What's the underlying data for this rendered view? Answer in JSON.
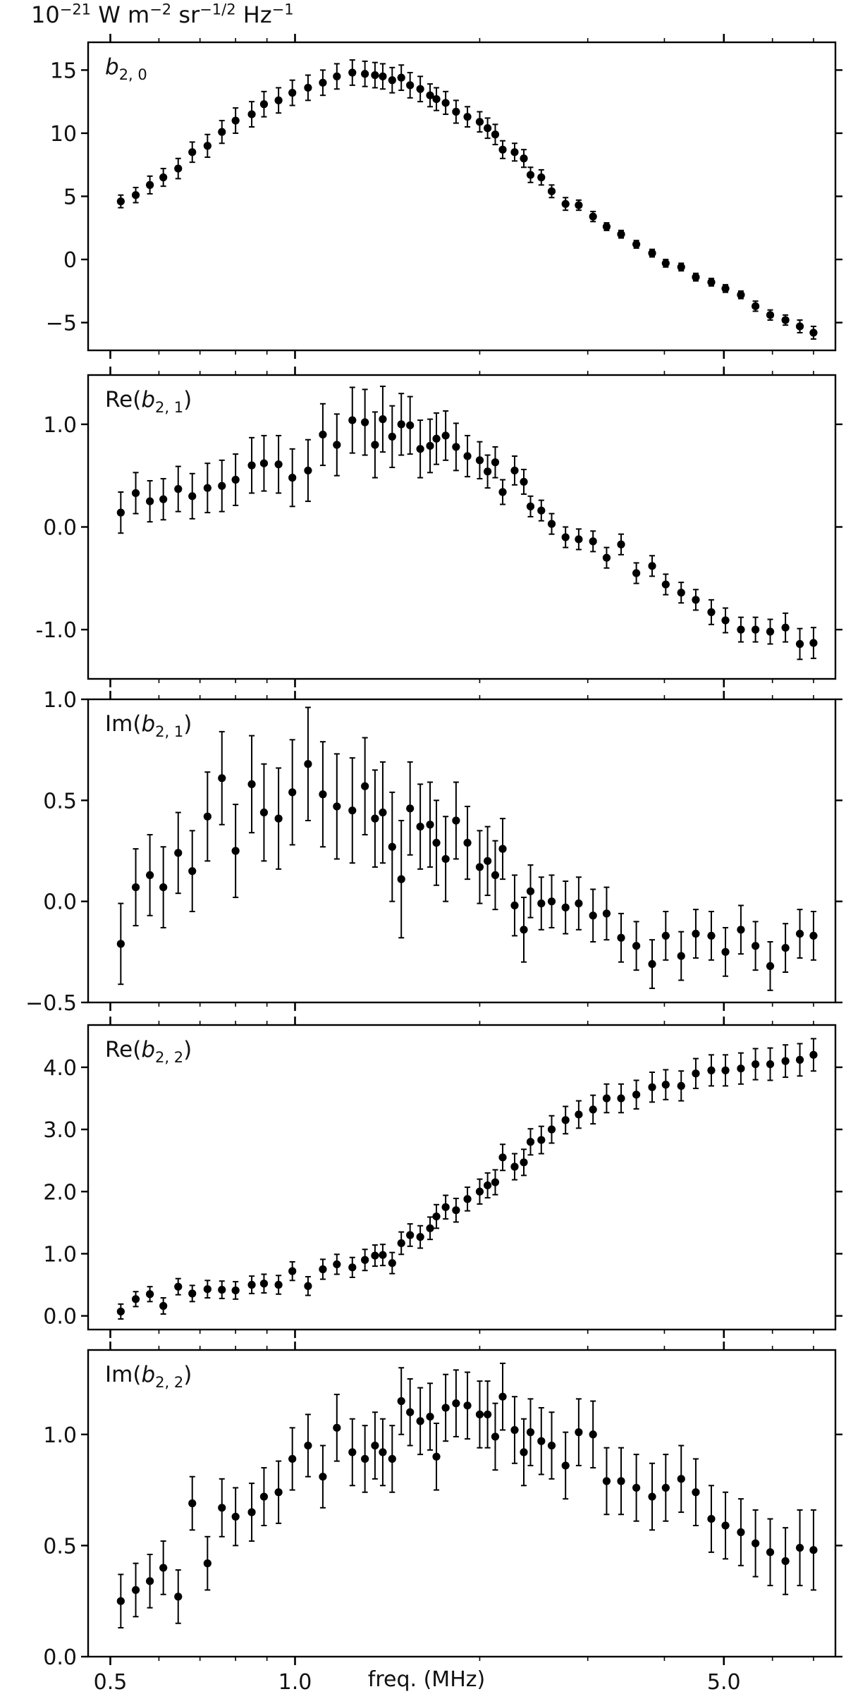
{
  "figure": {
    "units_text": {
      "base": "10",
      "exp1": "−21",
      "w": " W m",
      "exp2": "−2",
      "sr": " sr",
      "exp3": "−1/2",
      "hz": " Hz",
      "exp4": "−1"
    },
    "xlabel": "freq. (MHz)",
    "x_scale": "log",
    "x_ticks": [
      0.5,
      1.0,
      5.0
    ],
    "x_tick_labels": [
      "0.5",
      "1.0",
      "5.0"
    ],
    "xlim": [
      0.46,
      7.6
    ]
  },
  "chart_data": [
    {
      "type": "scatter",
      "label": {
        "base": "b",
        "sub": "2, 0",
        "italic_base": true,
        "wrap": ""
      },
      "ylim": [
        -7.2,
        17.2
      ],
      "y_ticks": [
        -5,
        0,
        5,
        10,
        15
      ],
      "y_tick_labels": [
        "−5",
        "0",
        "5",
        "10",
        "15"
      ],
      "x": [
        0.52,
        0.55,
        0.58,
        0.61,
        0.645,
        0.68,
        0.72,
        0.76,
        0.8,
        0.85,
        0.89,
        0.94,
        0.99,
        1.05,
        1.11,
        1.17,
        1.24,
        1.3,
        1.35,
        1.39,
        1.44,
        1.49,
        1.54,
        1.6,
        1.66,
        1.7,
        1.76,
        1.83,
        1.91,
        2.0,
        2.06,
        2.12,
        2.18,
        2.28,
        2.36,
        2.42,
        2.52,
        2.62,
        2.76,
        2.9,
        3.06,
        3.22,
        3.4,
        3.6,
        3.82,
        4.02,
        4.26,
        4.5,
        4.77,
        5.03,
        5.33,
        5.63,
        5.95,
        6.3,
        6.65,
        7.0
      ],
      "y": [
        4.6,
        5.1,
        5.9,
        6.5,
        7.2,
        8.5,
        9.0,
        10.1,
        11.0,
        11.5,
        12.3,
        12.6,
        13.2,
        13.6,
        14.0,
        14.5,
        14.8,
        14.7,
        14.6,
        14.5,
        14.2,
        14.4,
        13.8,
        13.5,
        13.0,
        12.7,
        12.4,
        11.7,
        11.3,
        10.9,
        10.4,
        9.9,
        8.7,
        8.5,
        8.0,
        6.7,
        6.5,
        5.4,
        4.4,
        4.3,
        3.4,
        2.6,
        2.0,
        1.2,
        0.5,
        -0.3,
        -0.6,
        -1.4,
        -1.8,
        -2.3,
        -2.8,
        -3.7,
        -4.4,
        -4.8,
        -5.3,
        -5.8
      ],
      "err": [
        0.5,
        0.6,
        0.7,
        0.7,
        0.8,
        0.8,
        0.9,
        0.9,
        1.0,
        1.0,
        1.0,
        1.0,
        1.0,
        1.0,
        1.0,
        1.0,
        1.0,
        1.0,
        1.0,
        1.0,
        1.0,
        1.0,
        1.0,
        1.0,
        0.9,
        0.9,
        0.9,
        0.9,
        0.8,
        0.8,
        0.8,
        0.8,
        0.7,
        0.7,
        0.7,
        0.6,
        0.6,
        0.5,
        0.5,
        0.4,
        0.4,
        0.3,
        0.3,
        0.3,
        0.3,
        0.3,
        0.3,
        0.3,
        0.3,
        0.3,
        0.3,
        0.4,
        0.4,
        0.4,
        0.5,
        0.5
      ]
    },
    {
      "type": "scatter",
      "label": {
        "base": "b",
        "sub": "2, 1",
        "italic_base": false,
        "wrap": "Re"
      },
      "ylim": [
        -1.48,
        1.48
      ],
      "y_ticks": [
        -1.0,
        0.0,
        1.0
      ],
      "y_tick_labels": [
        "-1.0",
        "0.0",
        "1.0"
      ],
      "x": [
        0.52,
        0.55,
        0.58,
        0.61,
        0.645,
        0.68,
        0.72,
        0.76,
        0.8,
        0.85,
        0.89,
        0.94,
        0.99,
        1.05,
        1.11,
        1.17,
        1.24,
        1.3,
        1.35,
        1.39,
        1.44,
        1.49,
        1.54,
        1.6,
        1.66,
        1.7,
        1.76,
        1.83,
        1.91,
        2.0,
        2.06,
        2.12,
        2.18,
        2.28,
        2.36,
        2.42,
        2.52,
        2.62,
        2.76,
        2.9,
        3.06,
        3.22,
        3.4,
        3.6,
        3.82,
        4.02,
        4.26,
        4.5,
        4.77,
        5.03,
        5.33,
        5.63,
        5.95,
        6.3,
        6.65,
        7.0
      ],
      "y": [
        0.14,
        0.33,
        0.25,
        0.27,
        0.37,
        0.3,
        0.38,
        0.4,
        0.46,
        0.6,
        0.62,
        0.61,
        0.48,
        0.55,
        0.9,
        0.8,
        1.04,
        1.02,
        0.8,
        1.05,
        0.88,
        1.0,
        0.99,
        0.76,
        0.79,
        0.86,
        0.89,
        0.78,
        0.69,
        0.65,
        0.54,
        0.63,
        0.34,
        0.55,
        0.44,
        0.2,
        0.16,
        0.03,
        -0.1,
        -0.12,
        -0.14,
        -0.3,
        -0.17,
        -0.45,
        -0.38,
        -0.56,
        -0.64,
        -0.71,
        -0.83,
        -0.91,
        -1.0,
        -1.0,
        -1.02,
        -0.98,
        -1.14,
        -1.13
      ],
      "err": [
        0.2,
        0.2,
        0.2,
        0.2,
        0.22,
        0.22,
        0.24,
        0.25,
        0.25,
        0.27,
        0.27,
        0.28,
        0.28,
        0.3,
        0.3,
        0.3,
        0.32,
        0.32,
        0.32,
        0.32,
        0.3,
        0.3,
        0.28,
        0.28,
        0.26,
        0.25,
        0.24,
        0.23,
        0.2,
        0.18,
        0.16,
        0.15,
        0.12,
        0.14,
        0.12,
        0.1,
        0.1,
        0.1,
        0.1,
        0.1,
        0.1,
        0.1,
        0.1,
        0.1,
        0.1,
        0.1,
        0.1,
        0.1,
        0.12,
        0.12,
        0.12,
        0.12,
        0.12,
        0.14,
        0.15,
        0.15
      ]
    },
    {
      "type": "scatter",
      "label": {
        "base": "b",
        "sub": "2, 1",
        "italic_base": false,
        "wrap": "Im"
      },
      "ylim": [
        -0.5,
        1.0
      ],
      "y_ticks": [
        -0.5,
        0.0,
        0.5,
        1.0
      ],
      "y_tick_labels": [
        "−0.5",
        "0.0",
        "0.5",
        "1.0"
      ],
      "x": [
        0.52,
        0.55,
        0.58,
        0.61,
        0.645,
        0.68,
        0.72,
        0.76,
        0.8,
        0.85,
        0.89,
        0.94,
        0.99,
        1.05,
        1.11,
        1.17,
        1.24,
        1.3,
        1.35,
        1.39,
        1.44,
        1.49,
        1.54,
        1.6,
        1.66,
        1.7,
        1.76,
        1.83,
        1.91,
        2.0,
        2.06,
        2.12,
        2.18,
        2.28,
        2.36,
        2.42,
        2.52,
        2.62,
        2.76,
        2.9,
        3.06,
        3.22,
        3.4,
        3.6,
        3.82,
        4.02,
        4.26,
        4.5,
        4.77,
        5.03,
        5.33,
        5.63,
        5.95,
        6.3,
        6.65,
        7.0
      ],
      "y": [
        -0.21,
        0.07,
        0.13,
        0.07,
        0.24,
        0.15,
        0.42,
        0.61,
        0.25,
        0.58,
        0.44,
        0.41,
        0.54,
        0.68,
        0.53,
        0.47,
        0.45,
        0.57,
        0.41,
        0.44,
        0.27,
        0.11,
        0.46,
        0.37,
        0.38,
        0.29,
        0.21,
        0.4,
        0.29,
        0.17,
        0.2,
        0.13,
        0.26,
        -0.02,
        -0.14,
        0.05,
        -0.01,
        0.0,
        -0.03,
        -0.01,
        -0.07,
        -0.06,
        -0.18,
        -0.22,
        -0.31,
        -0.17,
        -0.27,
        -0.16,
        -0.17,
        -0.25,
        -0.14,
        -0.22,
        -0.32,
        -0.23,
        -0.16,
        -0.17
      ],
      "err": [
        0.2,
        0.19,
        0.2,
        0.2,
        0.2,
        0.2,
        0.22,
        0.23,
        0.23,
        0.24,
        0.24,
        0.25,
        0.26,
        0.28,
        0.26,
        0.26,
        0.26,
        0.24,
        0.24,
        0.25,
        0.27,
        0.29,
        0.23,
        0.21,
        0.21,
        0.21,
        0.21,
        0.19,
        0.18,
        0.18,
        0.17,
        0.17,
        0.15,
        0.15,
        0.16,
        0.13,
        0.13,
        0.13,
        0.13,
        0.13,
        0.13,
        0.13,
        0.12,
        0.12,
        0.12,
        0.12,
        0.12,
        0.12,
        0.12,
        0.12,
        0.12,
        0.12,
        0.12,
        0.12,
        0.12,
        0.12
      ]
    },
    {
      "type": "scatter",
      "label": {
        "base": "b",
        "sub": "2, 2",
        "italic_base": false,
        "wrap": "Re"
      },
      "ylim": [
        -0.22,
        4.68
      ],
      "y_ticks": [
        0.0,
        1.0,
        2.0,
        3.0,
        4.0
      ],
      "y_tick_labels": [
        "0.0",
        "1.0",
        "2.0",
        "3.0",
        "4.0"
      ],
      "x": [
        0.52,
        0.55,
        0.58,
        0.61,
        0.645,
        0.68,
        0.72,
        0.76,
        0.8,
        0.85,
        0.89,
        0.94,
        0.99,
        1.05,
        1.11,
        1.17,
        1.24,
        1.3,
        1.35,
        1.39,
        1.44,
        1.49,
        1.54,
        1.6,
        1.66,
        1.7,
        1.76,
        1.83,
        1.91,
        2.0,
        2.06,
        2.12,
        2.18,
        2.28,
        2.36,
        2.42,
        2.52,
        2.62,
        2.76,
        2.9,
        3.06,
        3.22,
        3.4,
        3.6,
        3.82,
        4.02,
        4.26,
        4.5,
        4.77,
        5.03,
        5.33,
        5.63,
        5.95,
        6.3,
        6.65,
        7.0
      ],
      "y": [
        0.07,
        0.27,
        0.35,
        0.16,
        0.47,
        0.36,
        0.43,
        0.42,
        0.41,
        0.5,
        0.52,
        0.5,
        0.72,
        0.48,
        0.75,
        0.83,
        0.78,
        0.9,
        0.97,
        0.98,
        0.85,
        1.17,
        1.3,
        1.27,
        1.41,
        1.6,
        1.75,
        1.7,
        1.88,
        2.0,
        2.1,
        2.15,
        2.55,
        2.4,
        2.47,
        2.8,
        2.83,
        3.0,
        3.15,
        3.24,
        3.32,
        3.5,
        3.5,
        3.56,
        3.68,
        3.72,
        3.7,
        3.9,
        3.95,
        3.95,
        3.98,
        4.05,
        4.05,
        4.1,
        4.12,
        4.2
      ],
      "err": [
        0.12,
        0.12,
        0.12,
        0.13,
        0.13,
        0.13,
        0.14,
        0.14,
        0.14,
        0.14,
        0.15,
        0.15,
        0.15,
        0.15,
        0.16,
        0.16,
        0.16,
        0.17,
        0.17,
        0.17,
        0.17,
        0.18,
        0.18,
        0.18,
        0.18,
        0.19,
        0.19,
        0.19,
        0.19,
        0.2,
        0.2,
        0.2,
        0.21,
        0.21,
        0.21,
        0.21,
        0.22,
        0.22,
        0.22,
        0.22,
        0.23,
        0.23,
        0.23,
        0.23,
        0.24,
        0.24,
        0.24,
        0.24,
        0.25,
        0.25,
        0.25,
        0.25,
        0.26,
        0.26,
        0.26,
        0.26
      ]
    },
    {
      "type": "scatter",
      "label": {
        "base": "b",
        "sub": "2, 2",
        "italic_base": false,
        "wrap": "Im"
      },
      "ylim": [
        0.0,
        1.38
      ],
      "y_ticks": [
        0.0,
        0.5,
        1.0
      ],
      "y_tick_labels": [
        "0.0",
        "0.5",
        "1.0"
      ],
      "x": [
        0.52,
        0.55,
        0.58,
        0.61,
        0.645,
        0.68,
        0.72,
        0.76,
        0.8,
        0.85,
        0.89,
        0.94,
        0.99,
        1.05,
        1.11,
        1.17,
        1.24,
        1.3,
        1.35,
        1.39,
        1.44,
        1.49,
        1.54,
        1.6,
        1.66,
        1.7,
        1.76,
        1.83,
        1.91,
        2.0,
        2.06,
        2.12,
        2.18,
        2.28,
        2.36,
        2.42,
        2.52,
        2.62,
        2.76,
        2.9,
        3.06,
        3.22,
        3.4,
        3.6,
        3.82,
        4.02,
        4.26,
        4.5,
        4.77,
        5.03,
        5.33,
        5.63,
        5.95,
        6.3,
        6.65,
        7.0
      ],
      "y": [
        0.25,
        0.3,
        0.34,
        0.4,
        0.27,
        0.69,
        0.42,
        0.67,
        0.63,
        0.65,
        0.72,
        0.74,
        0.89,
        0.95,
        0.81,
        1.03,
        0.92,
        0.89,
        0.95,
        0.92,
        0.89,
        1.15,
        1.1,
        1.06,
        1.08,
        0.9,
        1.12,
        1.14,
        1.13,
        1.09,
        1.09,
        0.99,
        1.17,
        1.02,
        0.92,
        1.01,
        0.97,
        0.95,
        0.86,
        1.01,
        1.0,
        0.79,
        0.79,
        0.76,
        0.72,
        0.76,
        0.8,
        0.74,
        0.62,
        0.59,
        0.56,
        0.51,
        0.47,
        0.43,
        0.49,
        0.48
      ],
      "err": [
        0.12,
        0.12,
        0.12,
        0.12,
        0.12,
        0.12,
        0.12,
        0.13,
        0.13,
        0.13,
        0.13,
        0.14,
        0.14,
        0.14,
        0.14,
        0.15,
        0.15,
        0.15,
        0.15,
        0.15,
        0.15,
        0.15,
        0.15,
        0.15,
        0.15,
        0.15,
        0.15,
        0.15,
        0.15,
        0.15,
        0.15,
        0.15,
        0.15,
        0.15,
        0.15,
        0.15,
        0.15,
        0.15,
        0.15,
        0.15,
        0.15,
        0.15,
        0.15,
        0.15,
        0.15,
        0.15,
        0.15,
        0.15,
        0.15,
        0.15,
        0.15,
        0.15,
        0.15,
        0.15,
        0.17,
        0.18
      ]
    }
  ]
}
